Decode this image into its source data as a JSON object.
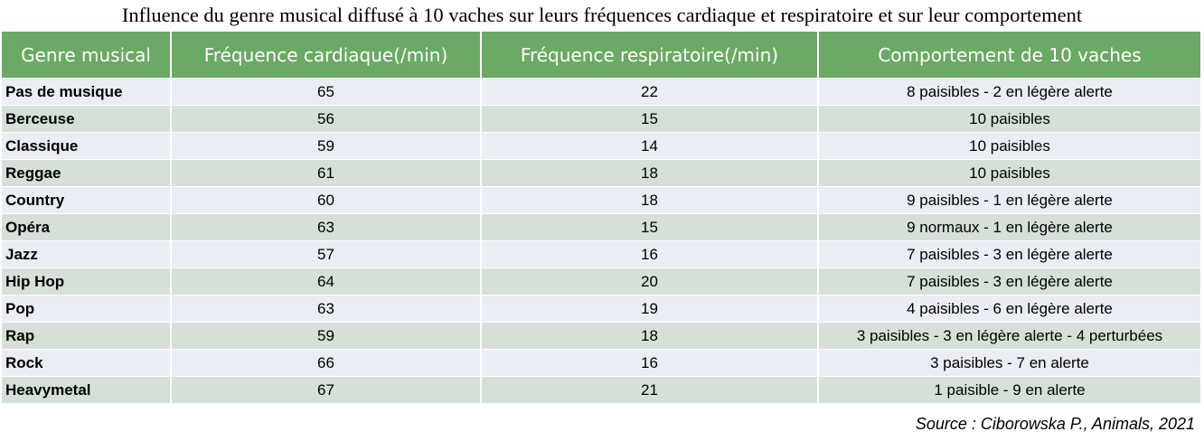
{
  "title": "Influence du genre musical diffusé à 10 vaches sur leurs fréquences cardiaque et respiratoire et sur leur comportement",
  "table": {
    "headers": [
      "Genre musical",
      "Fréquence cardiaque(/min)",
      "Fréquence respiratoire(/min)",
      "Comportement de 10 vaches"
    ],
    "rows": [
      [
        "Pas de musique",
        "65",
        "22",
        "8 paisibles - 2 en légère alerte"
      ],
      [
        "Berceuse",
        "56",
        "15",
        "10 paisibles"
      ],
      [
        "Classique",
        "59",
        "14",
        "10 paisibles"
      ],
      [
        "Reggae",
        "61",
        "18",
        "10 paisibles"
      ],
      [
        "Country",
        "60",
        "18",
        "9 paisibles - 1 en légère alerte"
      ],
      [
        "Opéra",
        "63",
        "15",
        "9 normaux - 1 en légère alerte"
      ],
      [
        "Jazz",
        "57",
        "16",
        "7 paisibles - 3 en légère alerte"
      ],
      [
        "Hip Hop",
        "64",
        "20",
        "7 paisibles - 3 en légère alerte"
      ],
      [
        "Pop",
        "63",
        "19",
        "4 paisibles - 6 en légère alerte"
      ],
      [
        "Rap",
        "59",
        "18",
        "3 paisibles - 3 en légère alerte - 4 perturbées"
      ],
      [
        "Rock",
        "66",
        "16",
        "3 paisibles - 7 en alerte"
      ],
      [
        "Heavymetal",
        "67",
        "21",
        "1 paisible - 9 en alerte"
      ]
    ]
  },
  "source": "Source : Ciborowska P., Animals, 2021",
  "colors": {
    "header_bg": "#6aaa64",
    "header_text": "#ffffff",
    "row_odd": "#ebedf4",
    "row_even": "#d5e0d9"
  }
}
